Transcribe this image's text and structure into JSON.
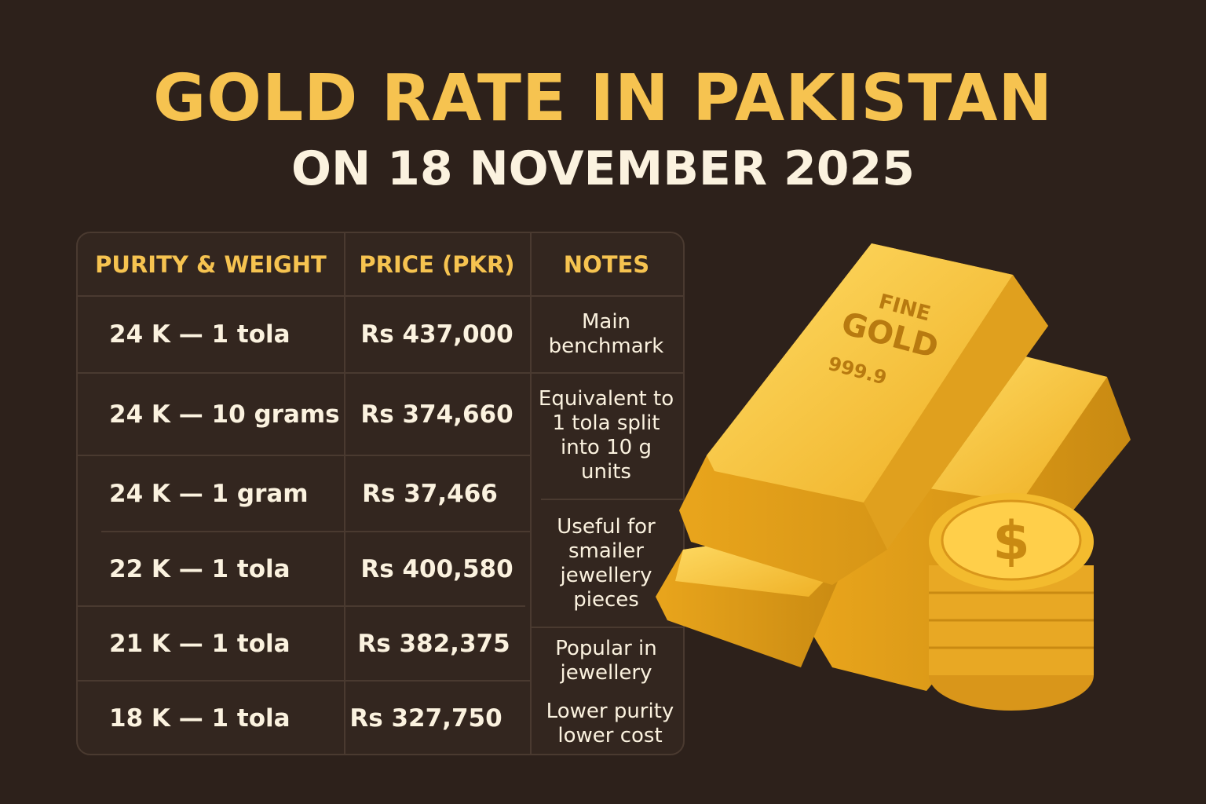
{
  "title": "GOLD RATE IN PAKISTAN",
  "subtitle": "ON 18 NOVEMBER 2025",
  "table": {
    "headers": [
      "PURITY & WEIGHT",
      "PRICE (PKR)",
      "NOTES"
    ],
    "rows": [
      {
        "purity_weight": "24 K — 1 tola",
        "price": "Rs 437,000"
      },
      {
        "purity_weight": "24 K — 10 grams",
        "price": "Rs 374,660"
      },
      {
        "purity_weight": "24 K — 1 gram",
        "price": "Rs 37,466"
      },
      {
        "purity_weight": "22 K — 1 tola",
        "price": "Rs 400,580"
      },
      {
        "purity_weight": "21 K — 1 tola",
        "price": "Rs 382,375"
      },
      {
        "purity_weight": "18 K — 1 tola",
        "price": "Rs 327,750"
      }
    ],
    "notes": [
      "Main benchmark",
      "Equivalent to 1 tola split into 10 g units",
      "Useful for smailer jewellery pieces",
      "Popular in jewellery",
      "Lower purity lower cost"
    ]
  },
  "illustration": {
    "bar_text": [
      "FINE",
      "GOLD",
      "999.9"
    ],
    "coin_symbol": "$",
    "colors": {
      "gold": "#f2b82c",
      "gold_light": "#ffd65a",
      "gold_dark": "#c98a12"
    }
  },
  "colors": {
    "background": "#2d211b",
    "accent": "#f6c350",
    "text": "#fbf2df"
  }
}
